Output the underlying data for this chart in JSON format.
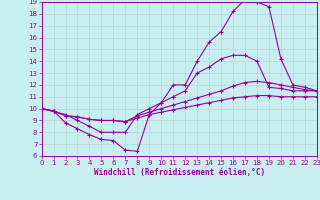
{
  "xlabel": "Windchill (Refroidissement éolien,°C)",
  "bg_color": "#c8eef0",
  "grid_color": "#b0d8da",
  "line_color": "#990099",
  "xmin": 0,
  "xmax": 23,
  "ymin": 6,
  "ymax": 19,
  "line1_x": [
    0,
    1,
    2,
    3,
    4,
    5,
    6,
    7,
    8,
    9,
    10,
    11,
    12,
    13,
    14,
    15,
    16,
    17,
    18,
    19,
    20,
    21,
    22,
    23
  ],
  "line1_y": [
    10,
    9.8,
    8.8,
    8.3,
    7.8,
    7.4,
    7.3,
    6.5,
    6.4,
    9.5,
    10.5,
    12.0,
    12.0,
    14.0,
    15.6,
    16.5,
    18.2,
    19.2,
    19.0,
    18.6,
    14.2,
    12.0,
    11.8,
    11.5
  ],
  "line2_x": [
    0,
    2,
    3,
    4,
    5,
    6,
    7,
    8,
    9,
    10,
    11,
    12,
    13,
    14,
    15,
    16,
    17,
    18,
    19,
    20,
    21,
    22,
    23
  ],
  "line2_y": [
    10,
    9.5,
    9.0,
    8.5,
    8.0,
    8.0,
    8.0,
    9.5,
    10.0,
    10.5,
    11.0,
    11.5,
    13.0,
    13.5,
    14.2,
    14.5,
    14.5,
    14.0,
    11.8,
    11.7,
    11.5,
    11.5,
    11.5
  ],
  "line3_x": [
    0,
    1,
    2,
    3,
    4,
    5,
    6,
    7,
    8,
    9,
    10,
    11,
    12,
    13,
    14,
    15,
    16,
    17,
    18,
    19,
    20,
    21,
    22,
    23
  ],
  "line3_y": [
    10,
    9.8,
    9.4,
    9.3,
    9.1,
    9.0,
    9.0,
    8.9,
    9.4,
    9.7,
    10.0,
    10.3,
    10.6,
    10.9,
    11.2,
    11.5,
    11.9,
    12.2,
    12.3,
    12.2,
    12.0,
    11.8,
    11.6,
    11.5
  ],
  "line4_x": [
    0,
    1,
    2,
    3,
    4,
    5,
    6,
    7,
    8,
    9,
    10,
    11,
    12,
    13,
    14,
    15,
    16,
    17,
    18,
    19,
    20,
    21,
    22,
    23
  ],
  "line4_y": [
    10,
    9.8,
    9.4,
    9.3,
    9.1,
    9.0,
    9.0,
    8.9,
    9.2,
    9.5,
    9.7,
    9.9,
    10.1,
    10.3,
    10.5,
    10.7,
    10.9,
    11.0,
    11.1,
    11.1,
    11.0,
    11.0,
    11.0,
    11.0
  ]
}
